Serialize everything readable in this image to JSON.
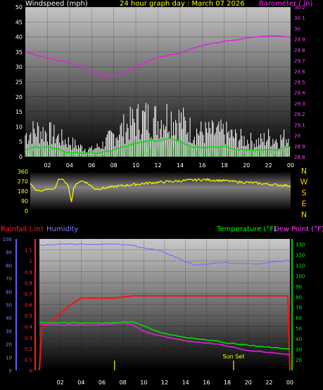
{
  "chart_data": [
    {
      "type": "line",
      "title": "24 hour graph day : March 07 2026",
      "ylabel": "Windspeed (mph)",
      "y2label": "Barometer (.in)",
      "ylim": [
        0,
        50
      ],
      "y2lim": [
        28.8,
        30.2
      ],
      "yticks": [
        "0",
        "5",
        "10",
        "15",
        "20",
        "25",
        "30",
        "35",
        "40",
        "45",
        "50"
      ],
      "y2ticks": [
        "28.8",
        "28.9",
        "29",
        "29.1",
        "29.2",
        "29.3",
        "29.4",
        "29.5",
        "29.6",
        "29.7",
        "29.8",
        "29.9",
        "30",
        "30.1",
        "30.2"
      ],
      "xticks": [
        "02",
        "04",
        "06",
        "08",
        "10",
        "12",
        "14",
        "16",
        "18",
        "20",
        "22",
        "00"
      ],
      "series": [
        {
          "name": "Barometer",
          "color": "#e020e0",
          "x": [
            0,
            1,
            2,
            3,
            4,
            5,
            6,
            7,
            8,
            9,
            10,
            11,
            12,
            13,
            14,
            15,
            16,
            17,
            18,
            19,
            20,
            21,
            22,
            23,
            24
          ],
          "values": [
            29.78,
            29.75,
            29.72,
            29.7,
            29.68,
            29.64,
            29.59,
            29.55,
            29.56,
            29.59,
            29.64,
            29.69,
            29.73,
            29.75,
            29.77,
            29.81,
            29.84,
            29.86,
            29.88,
            29.89,
            29.91,
            29.92,
            29.93,
            29.93,
            29.92
          ]
        },
        {
          "name": "Wind gust",
          "color": "#ffffff",
          "x": [
            0,
            1,
            2,
            3,
            4,
            5,
            6,
            7,
            8,
            9,
            10,
            11,
            12,
            13,
            14,
            15,
            16,
            17,
            18,
            19,
            20,
            21,
            22,
            23,
            24
          ],
          "values": [
            9,
            11,
            10,
            8,
            6,
            4,
            3,
            5,
            9,
            12,
            15,
            16,
            15,
            17,
            15,
            11,
            10,
            10,
            10,
            8,
            7,
            6,
            8,
            7,
            9
          ]
        },
        {
          "name": "Wind speed",
          "color": "#00e000",
          "x": [
            0,
            1,
            2,
            3,
            4,
            5,
            6,
            7,
            8,
            9,
            10,
            11,
            12,
            13,
            14,
            15,
            16,
            17,
            18,
            19,
            20,
            21,
            22,
            23,
            24
          ],
          "values": [
            2,
            3,
            3,
            2,
            1,
            1,
            1,
            1,
            2,
            3,
            4,
            5,
            5,
            6,
            5,
            3,
            3,
            3,
            3,
            2,
            2,
            2,
            2,
            2,
            3
          ]
        }
      ]
    },
    {
      "type": "line",
      "ylim": [
        0,
        360
      ],
      "yticks": [
        "0",
        "90",
        "180",
        "270",
        "360"
      ],
      "y2ticks": [
        "N",
        "W",
        "S",
        "E",
        "N"
      ],
      "series": [
        {
          "name": "Wind direction",
          "color": "#ffff00",
          "x": [
            0,
            0.5,
            1,
            1.5,
            2,
            2.3,
            2.6,
            3,
            3.5,
            3.8,
            4,
            4.5,
            5,
            6,
            7,
            8,
            9,
            10,
            11,
            12,
            13,
            14,
            15,
            16,
            17,
            18,
            19,
            20,
            21,
            22,
            23,
            24
          ],
          "values": [
            250,
            190,
            180,
            200,
            195,
            210,
            290,
            285,
            230,
            80,
            210,
            270,
            270,
            200,
            210,
            225,
            235,
            245,
            255,
            262,
            268,
            275,
            282,
            285,
            280,
            275,
            265,
            260,
            252,
            243,
            235,
            230
          ]
        }
      ]
    },
    {
      "type": "line",
      "ylabel": "Rainfall (.in)",
      "ylabel2": "Humidity",
      "y2label": "Temperature (°F)",
      "y2label2": "Dew Point (°F)",
      "rain_lim": [
        0,
        1.2
      ],
      "hum_lim": [
        0,
        100
      ],
      "temp_lim": [
        10,
        135
      ],
      "rain_ticks": [
        "0",
        "0.1",
        "0.2",
        "0.3",
        "0.4",
        "0.5",
        "0.6",
        "0.7",
        "0.8",
        "0.9",
        "1",
        "1.1"
      ],
      "hum_ticks": [
        "0",
        "10",
        "20",
        "30",
        "40",
        "50",
        "60",
        "70",
        "80",
        "90",
        "100"
      ],
      "temp_ticks": [
        "20",
        "30",
        "40",
        "50",
        "60",
        "70",
        "80",
        "90",
        "100",
        "110",
        "120",
        "130"
      ],
      "xticks": [
        "02",
        "04",
        "06",
        "08",
        "10",
        "12",
        "14",
        "16",
        "18",
        "20",
        "22",
        "00"
      ],
      "annotation": "Sun Set",
      "series": [
        {
          "name": "Humidity",
          "color": "#7070ff",
          "x": [
            0,
            2,
            4,
            6,
            7,
            8,
            9,
            10,
            11,
            12,
            13,
            14,
            15,
            16,
            17,
            18,
            19,
            20,
            21,
            22,
            23,
            24
          ],
          "values": [
            95,
            96,
            96,
            96,
            96,
            96,
            95,
            93,
            92,
            90,
            86,
            83,
            80,
            81,
            82,
            82,
            81,
            81,
            81,
            82,
            83,
            84
          ]
        },
        {
          "name": "Rainfall",
          "color": "#ff1010",
          "x": [
            0,
            0.2,
            0.6,
            1,
            2,
            3,
            4,
            5,
            6,
            7,
            8,
            9,
            10,
            12,
            14,
            16,
            18,
            20,
            22,
            23.8,
            24
          ],
          "values": [
            0,
            0.38,
            0.42,
            0.44,
            0.52,
            0.6,
            0.66,
            0.66,
            0.66,
            0.66,
            0.67,
            0.68,
            0.68,
            0.68,
            0.68,
            0.68,
            0.68,
            0.68,
            0.68,
            0.68,
            0
          ]
        },
        {
          "name": "Temperature",
          "color": "#00e000",
          "x": [
            0,
            1,
            2,
            3,
            4,
            5,
            6,
            7,
            8,
            9,
            10,
            11,
            12,
            13,
            14,
            15,
            16,
            17,
            18,
            19,
            20,
            21,
            22,
            23,
            24
          ],
          "values": [
            56,
            55,
            55,
            55,
            55,
            55,
            55,
            55,
            56,
            56,
            52,
            48,
            45,
            43,
            41,
            40,
            39,
            38,
            36,
            35,
            34,
            33,
            32,
            31,
            30
          ]
        },
        {
          "name": "Dew Point",
          "color": "#e020e0",
          "x": [
            0,
            1,
            2,
            3,
            4,
            5,
            6,
            7,
            8,
            9,
            10,
            11,
            12,
            13,
            14,
            15,
            16,
            17,
            18,
            19,
            20,
            21,
            22,
            23,
            24
          ],
          "values": [
            54,
            53,
            53,
            53,
            53,
            53,
            53,
            54,
            55,
            53,
            47,
            44,
            42,
            40,
            38,
            37,
            36,
            35,
            33,
            31,
            29,
            28,
            27,
            26,
            25
          ]
        }
      ]
    }
  ]
}
